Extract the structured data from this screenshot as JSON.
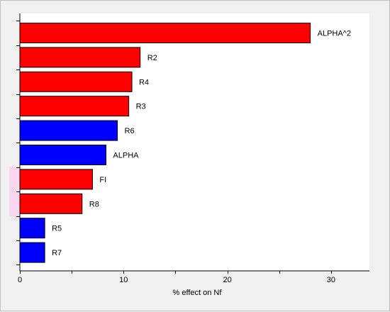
{
  "chart_data": {
    "type": "bar",
    "orientation": "horizontal",
    "xlabel": "% effect on Nf",
    "ylabel": "",
    "xlim": [
      0,
      33.7
    ],
    "xticks": [
      0,
      10,
      20,
      30
    ],
    "grid": false,
    "legend": "none",
    "colors": {
      "positive": "#ff0000",
      "negative": "#0000ff",
      "background": "#f0f0f0",
      "plot_background": "#ffffff",
      "highlight": "#fbd6f0"
    },
    "categories": [
      "ALPHA^2",
      "R2",
      "R4",
      "R3",
      "R6",
      "ALPHA",
      "FI",
      "R8",
      "R5",
      "R7"
    ],
    "values": [
      28.0,
      11.6,
      10.8,
      10.5,
      9.4,
      8.3,
      7.0,
      6.0,
      2.4,
      2.4
    ],
    "signs": [
      "positive",
      "positive",
      "positive",
      "positive",
      "negative",
      "negative",
      "positive",
      "positive",
      "negative",
      "negative"
    ],
    "highlighted": [
      false,
      false,
      false,
      false,
      false,
      false,
      true,
      true,
      false,
      false
    ]
  }
}
